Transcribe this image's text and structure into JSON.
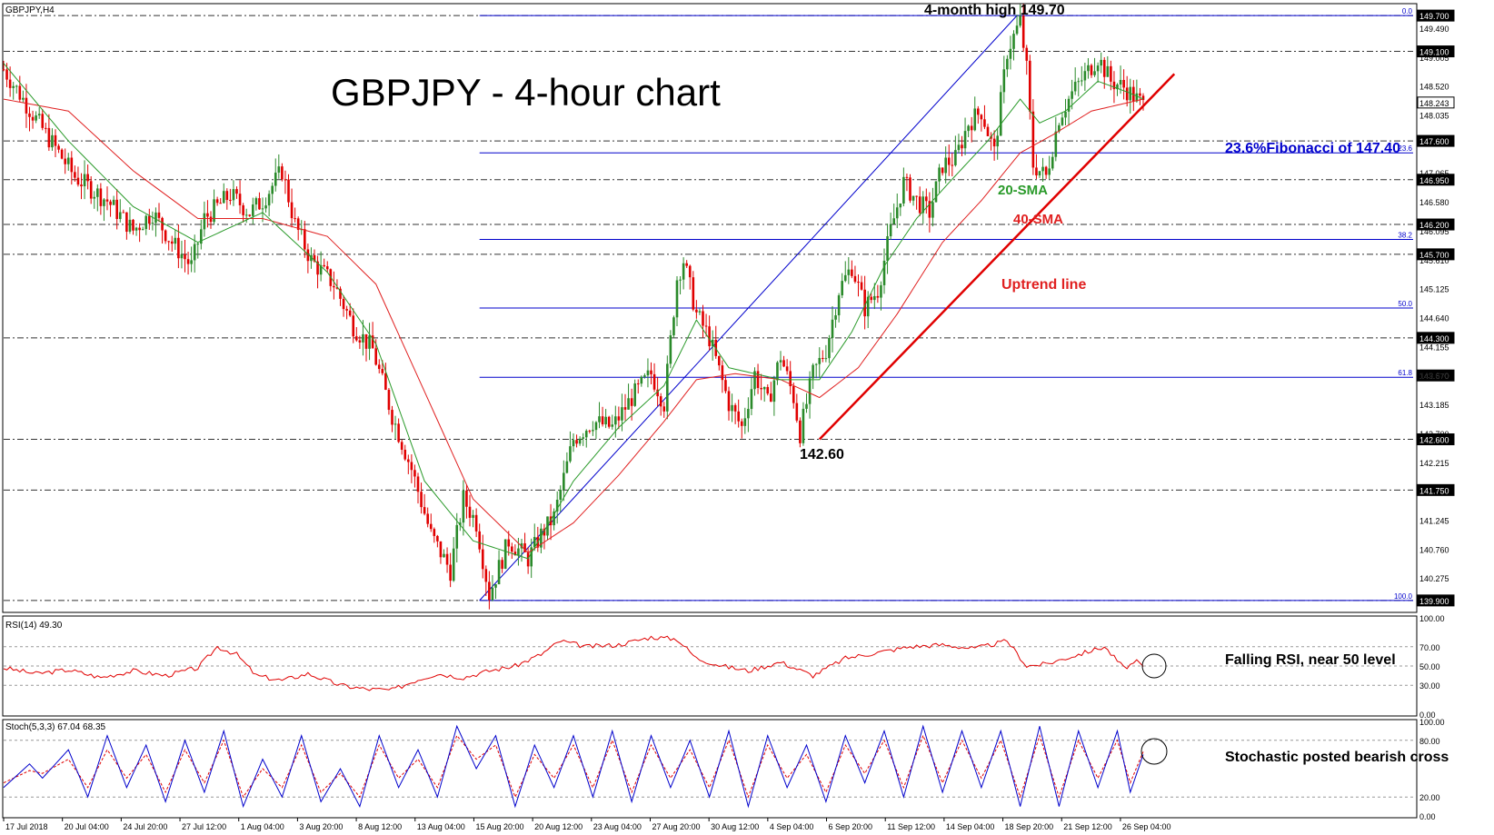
{
  "symbol_label": "GBPJPY,H4",
  "title": "GBPJPY - 4-hour chart",
  "colors": {
    "bull": "#2a8a2a",
    "bear": "#e00000",
    "sma20": "#2a9a2a",
    "sma40": "#e02020",
    "fib": "#0000cc",
    "uptrend": "#e00000",
    "rsi": "#e00000",
    "stoch_k": "#0000cc",
    "stoch_d": "#e00000",
    "grid": "#333333"
  },
  "annotations": {
    "high": "4-month high 149.70",
    "fib236": "23.6%Fibonacci of 147.40",
    "sma20": "20-SMA",
    "sma40": "40-SMA",
    "uptrend": "Uptrend line",
    "low": "142.60",
    "rsi_note": "Falling RSI, near 50 level",
    "stoch_note": "Stochastic posted bearish cross"
  },
  "chart_data": {
    "type": "candlestick",
    "price_axis_ticks": [
      "149.490",
      "149.005",
      "148.520",
      "148.035",
      "147.065",
      "146.580",
      "146.095",
      "145.610",
      "145.125",
      "144.640",
      "144.155",
      "143.670",
      "143.185",
      "142.700",
      "142.215",
      "141.245",
      "140.760",
      "140.275"
    ],
    "price_levels": [
      {
        "label": "149.700",
        "value": 149.7
      },
      {
        "label": "149.100",
        "value": 149.1
      },
      {
        "label": "148.243",
        "value": 148.243
      },
      {
        "label": "147.600",
        "value": 147.6
      },
      {
        "label": "146.950",
        "value": 146.95
      },
      {
        "label": "146.200",
        "value": 146.2
      },
      {
        "label": "145.700",
        "value": 145.7
      },
      {
        "label": "144.300",
        "value": 144.3
      },
      {
        "label": "143.670",
        "value": 143.67
      },
      {
        "label": "142.600",
        "value": 142.6
      },
      {
        "label": "141.750",
        "value": 141.75
      },
      {
        "label": "139.900",
        "value": 139.9
      }
    ],
    "fibonacci": {
      "high": 149.7,
      "low": 139.9,
      "levels": [
        {
          "label": "0.0",
          "value": 149.7
        },
        {
          "label": "23.6",
          "value": 147.4
        },
        {
          "label": "38.2",
          "value": 145.95
        },
        {
          "label": "50.0",
          "value": 144.8
        },
        {
          "label": "61.8",
          "value": 143.64
        },
        {
          "label": "100.0",
          "value": 139.9
        }
      ]
    },
    "date_labels": [
      "17 Jul 2018",
      "20 Jul 04:00",
      "24 Jul 20:00",
      "27 Jul 12:00",
      "1 Aug 04:00",
      "3 Aug 20:00",
      "8 Aug 12:00",
      "13 Aug 04:00",
      "15 Aug 20:00",
      "20 Aug 12:00",
      "23 Aug 04:00",
      "27 Aug 20:00",
      "30 Aug 12:00",
      "4 Sep 04:00",
      "6 Sep 20:00",
      "11 Sep 12:00",
      "14 Sep 04:00",
      "18 Sep 20:00",
      "21 Sep 12:00",
      "26 Sep 04:00"
    ],
    "price_path": [
      [
        0,
        148.8
      ],
      [
        12,
        147.8
      ],
      [
        22,
        147.0
      ],
      [
        32,
        146.6
      ],
      [
        40,
        146.1
      ],
      [
        46,
        146.4
      ],
      [
        52,
        145.9
      ],
      [
        58,
        145.5
      ],
      [
        62,
        146.3
      ],
      [
        70,
        146.7
      ],
      [
        76,
        146.4
      ],
      [
        80,
        146.6
      ],
      [
        86,
        147.1
      ],
      [
        90,
        146.2
      ],
      [
        95,
        145.6
      ],
      [
        102,
        145.2
      ],
      [
        108,
        144.5
      ],
      [
        114,
        144.1
      ],
      [
        120,
        143.0
      ],
      [
        126,
        142.1
      ],
      [
        132,
        141.0
      ],
      [
        138,
        140.4
      ],
      [
        142,
        141.6
      ],
      [
        146,
        141.2
      ],
      [
        150,
        140.0
      ],
      [
        156,
        140.9
      ],
      [
        162,
        140.6
      ],
      [
        166,
        141.0
      ],
      [
        170,
        141.3
      ],
      [
        176,
        142.6
      ],
      [
        182,
        142.9
      ],
      [
        188,
        142.8
      ],
      [
        194,
        143.3
      ],
      [
        200,
        143.7
      ],
      [
        204,
        143.2
      ],
      [
        208,
        145.3
      ],
      [
        210,
        145.6
      ],
      [
        214,
        144.7
      ],
      [
        218,
        144.3
      ],
      [
        224,
        143.2
      ],
      [
        228,
        142.8
      ],
      [
        232,
        143.7
      ],
      [
        236,
        143.2
      ],
      [
        240,
        144.0
      ],
      [
        244,
        143.3
      ],
      [
        246,
        142.7
      ],
      [
        250,
        143.7
      ],
      [
        254,
        144.1
      ],
      [
        258,
        145.1
      ],
      [
        262,
        145.5
      ],
      [
        266,
        144.8
      ],
      [
        270,
        145.1
      ],
      [
        274,
        146.1
      ],
      [
        278,
        146.9
      ],
      [
        282,
        146.6
      ],
      [
        286,
        146.4
      ],
      [
        290,
        147.2
      ],
      [
        294,
        147.3
      ],
      [
        298,
        147.9
      ],
      [
        302,
        148.1
      ],
      [
        306,
        147.4
      ],
      [
        310,
        149.1
      ],
      [
        314,
        149.6
      ],
      [
        316,
        148.8
      ],
      [
        318,
        147.2
      ],
      [
        322,
        147.0
      ],
      [
        326,
        148.0
      ],
      [
        330,
        148.4
      ],
      [
        334,
        148.7
      ],
      [
        338,
        149.0
      ],
      [
        342,
        148.6
      ],
      [
        346,
        148.5
      ],
      [
        350,
        148.3
      ],
      [
        352,
        148.2
      ]
    ],
    "sma20_path": [
      [
        0,
        148.9
      ],
      [
        20,
        147.6
      ],
      [
        40,
        146.5
      ],
      [
        60,
        145.9
      ],
      [
        80,
        146.4
      ],
      [
        100,
        145.4
      ],
      [
        115,
        144.2
      ],
      [
        130,
        141.9
      ],
      [
        145,
        140.9
      ],
      [
        162,
        140.6
      ],
      [
        176,
        141.9
      ],
      [
        190,
        142.8
      ],
      [
        204,
        143.5
      ],
      [
        214,
        144.6
      ],
      [
        224,
        143.8
      ],
      [
        240,
        143.6
      ],
      [
        252,
        143.6
      ],
      [
        262,
        144.4
      ],
      [
        272,
        145.5
      ],
      [
        282,
        146.3
      ],
      [
        292,
        146.9
      ],
      [
        304,
        147.6
      ],
      [
        314,
        148.3
      ],
      [
        320,
        147.9
      ],
      [
        328,
        148.1
      ],
      [
        338,
        148.6
      ],
      [
        348,
        148.4
      ],
      [
        352,
        148.3
      ]
    ],
    "sma40_path": [
      [
        0,
        148.3
      ],
      [
        20,
        148.1
      ],
      [
        40,
        147.1
      ],
      [
        60,
        146.3
      ],
      [
        80,
        146.3
      ],
      [
        100,
        146.0
      ],
      [
        115,
        145.2
      ],
      [
        130,
        143.4
      ],
      [
        145,
        141.6
      ],
      [
        162,
        140.7
      ],
      [
        176,
        141.2
      ],
      [
        190,
        142.0
      ],
      [
        204,
        142.9
      ],
      [
        214,
        143.6
      ],
      [
        226,
        143.7
      ],
      [
        240,
        143.6
      ],
      [
        252,
        143.3
      ],
      [
        264,
        143.8
      ],
      [
        276,
        144.7
      ],
      [
        290,
        145.9
      ],
      [
        302,
        146.6
      ],
      [
        314,
        147.4
      ],
      [
        324,
        147.7
      ],
      [
        336,
        148.1
      ],
      [
        352,
        148.3
      ]
    ],
    "uptrend_points": [
      [
        252,
        142.6
      ],
      [
        356,
        148.6
      ]
    ],
    "fib_swing_points": [
      [
        147,
        139.9
      ],
      [
        313,
        149.7
      ]
    ],
    "rsi": {
      "label": "RSI(14) 49.30",
      "ticks": [
        "100.00",
        "70.00",
        "50.00",
        "30.00",
        "0.00"
      ],
      "ylim": [
        0,
        100
      ],
      "values": [
        [
          0,
          48
        ],
        [
          10,
          42
        ],
        [
          20,
          46
        ],
        [
          30,
          38
        ],
        [
          40,
          45
        ],
        [
          50,
          40
        ],
        [
          60,
          48
        ],
        [
          66,
          70
        ],
        [
          72,
          62
        ],
        [
          78,
          40
        ],
        [
          86,
          35
        ],
        [
          94,
          42
        ],
        [
          104,
          30
        ],
        [
          112,
          26
        ],
        [
          120,
          25
        ],
        [
          128,
          36
        ],
        [
          134,
          42
        ],
        [
          142,
          38
        ],
        [
          150,
          45
        ],
        [
          158,
          50
        ],
        [
          166,
          62
        ],
        [
          172,
          76
        ],
        [
          180,
          70
        ],
        [
          190,
          72
        ],
        [
          200,
          80
        ],
        [
          208,
          78
        ],
        [
          214,
          58
        ],
        [
          222,
          50
        ],
        [
          230,
          45
        ],
        [
          240,
          54
        ],
        [
          250,
          40
        ],
        [
          260,
          58
        ],
        [
          270,
          64
        ],
        [
          280,
          70
        ],
        [
          290,
          72
        ],
        [
          300,
          68
        ],
        [
          310,
          76
        ],
        [
          316,
          50
        ],
        [
          322,
          52
        ],
        [
          330,
          60
        ],
        [
          340,
          70
        ],
        [
          346,
          48
        ],
        [
          350,
          54
        ],
        [
          352,
          49
        ]
      ]
    },
    "stoch": {
      "label": "Stoch(5,3,3) 67.04 68.35",
      "ticks": [
        "100.00",
        "80.00",
        "20.00",
        "0.00"
      ],
      "ylim": [
        0,
        100
      ],
      "k_values": [
        [
          0,
          30
        ],
        [
          8,
          55
        ],
        [
          12,
          40
        ],
        [
          20,
          70
        ],
        [
          26,
          20
        ],
        [
          32,
          85
        ],
        [
          38,
          30
        ],
        [
          44,
          75
        ],
        [
          50,
          15
        ],
        [
          56,
          80
        ],
        [
          62,
          25
        ],
        [
          68,
          90
        ],
        [
          74,
          10
        ],
        [
          80,
          60
        ],
        [
          86,
          20
        ],
        [
          92,
          85
        ],
        [
          98,
          15
        ],
        [
          104,
          50
        ],
        [
          110,
          10
        ],
        [
          116,
          85
        ],
        [
          122,
          30
        ],
        [
          128,
          70
        ],
        [
          134,
          20
        ],
        [
          140,
          95
        ],
        [
          146,
          50
        ],
        [
          152,
          85
        ],
        [
          158,
          10
        ],
        [
          164,
          75
        ],
        [
          170,
          30
        ],
        [
          176,
          85
        ],
        [
          182,
          20
        ],
        [
          188,
          90
        ],
        [
          194,
          15
        ],
        [
          200,
          85
        ],
        [
          206,
          30
        ],
        [
          212,
          80
        ],
        [
          218,
          20
        ],
        [
          224,
          90
        ],
        [
          230,
          10
        ],
        [
          236,
          85
        ],
        [
          242,
          30
        ],
        [
          248,
          75
        ],
        [
          254,
          15
        ],
        [
          260,
          85
        ],
        [
          266,
          35
        ],
        [
          272,
          90
        ],
        [
          278,
          20
        ],
        [
          284,
          95
        ],
        [
          290,
          25
        ],
        [
          296,
          90
        ],
        [
          302,
          30
        ],
        [
          308,
          90
        ],
        [
          314,
          10
        ],
        [
          320,
          95
        ],
        [
          326,
          10
        ],
        [
          332,
          90
        ],
        [
          338,
          30
        ],
        [
          344,
          90
        ],
        [
          348,
          25
        ],
        [
          352,
          65
        ]
      ],
      "d_values": [
        [
          0,
          35
        ],
        [
          8,
          48
        ],
        [
          12,
          45
        ],
        [
          20,
          60
        ],
        [
          26,
          30
        ],
        [
          32,
          70
        ],
        [
          38,
          40
        ],
        [
          44,
          65
        ],
        [
          50,
          25
        ],
        [
          56,
          70
        ],
        [
          62,
          35
        ],
        [
          68,
          80
        ],
        [
          74,
          20
        ],
        [
          80,
          50
        ],
        [
          86,
          30
        ],
        [
          92,
          75
        ],
        [
          98,
          25
        ],
        [
          104,
          45
        ],
        [
          110,
          20
        ],
        [
          116,
          75
        ],
        [
          122,
          40
        ],
        [
          128,
          60
        ],
        [
          134,
          30
        ],
        [
          140,
          85
        ],
        [
          146,
          60
        ],
        [
          152,
          75
        ],
        [
          158,
          20
        ],
        [
          164,
          65
        ],
        [
          170,
          40
        ],
        [
          176,
          75
        ],
        [
          182,
          30
        ],
        [
          188,
          80
        ],
        [
          194,
          25
        ],
        [
          200,
          75
        ],
        [
          206,
          40
        ],
        [
          212,
          70
        ],
        [
          218,
          30
        ],
        [
          224,
          80
        ],
        [
          230,
          20
        ],
        [
          236,
          75
        ],
        [
          242,
          40
        ],
        [
          248,
          65
        ],
        [
          254,
          25
        ],
        [
          260,
          75
        ],
        [
          266,
          45
        ],
        [
          272,
          80
        ],
        [
          278,
          30
        ],
        [
          284,
          85
        ],
        [
          290,
          35
        ],
        [
          296,
          80
        ],
        [
          302,
          40
        ],
        [
          308,
          80
        ],
        [
          314,
          20
        ],
        [
          320,
          85
        ],
        [
          326,
          20
        ],
        [
          332,
          80
        ],
        [
          338,
          40
        ],
        [
          344,
          80
        ],
        [
          348,
          35
        ],
        [
          352,
          68
        ]
      ]
    }
  }
}
